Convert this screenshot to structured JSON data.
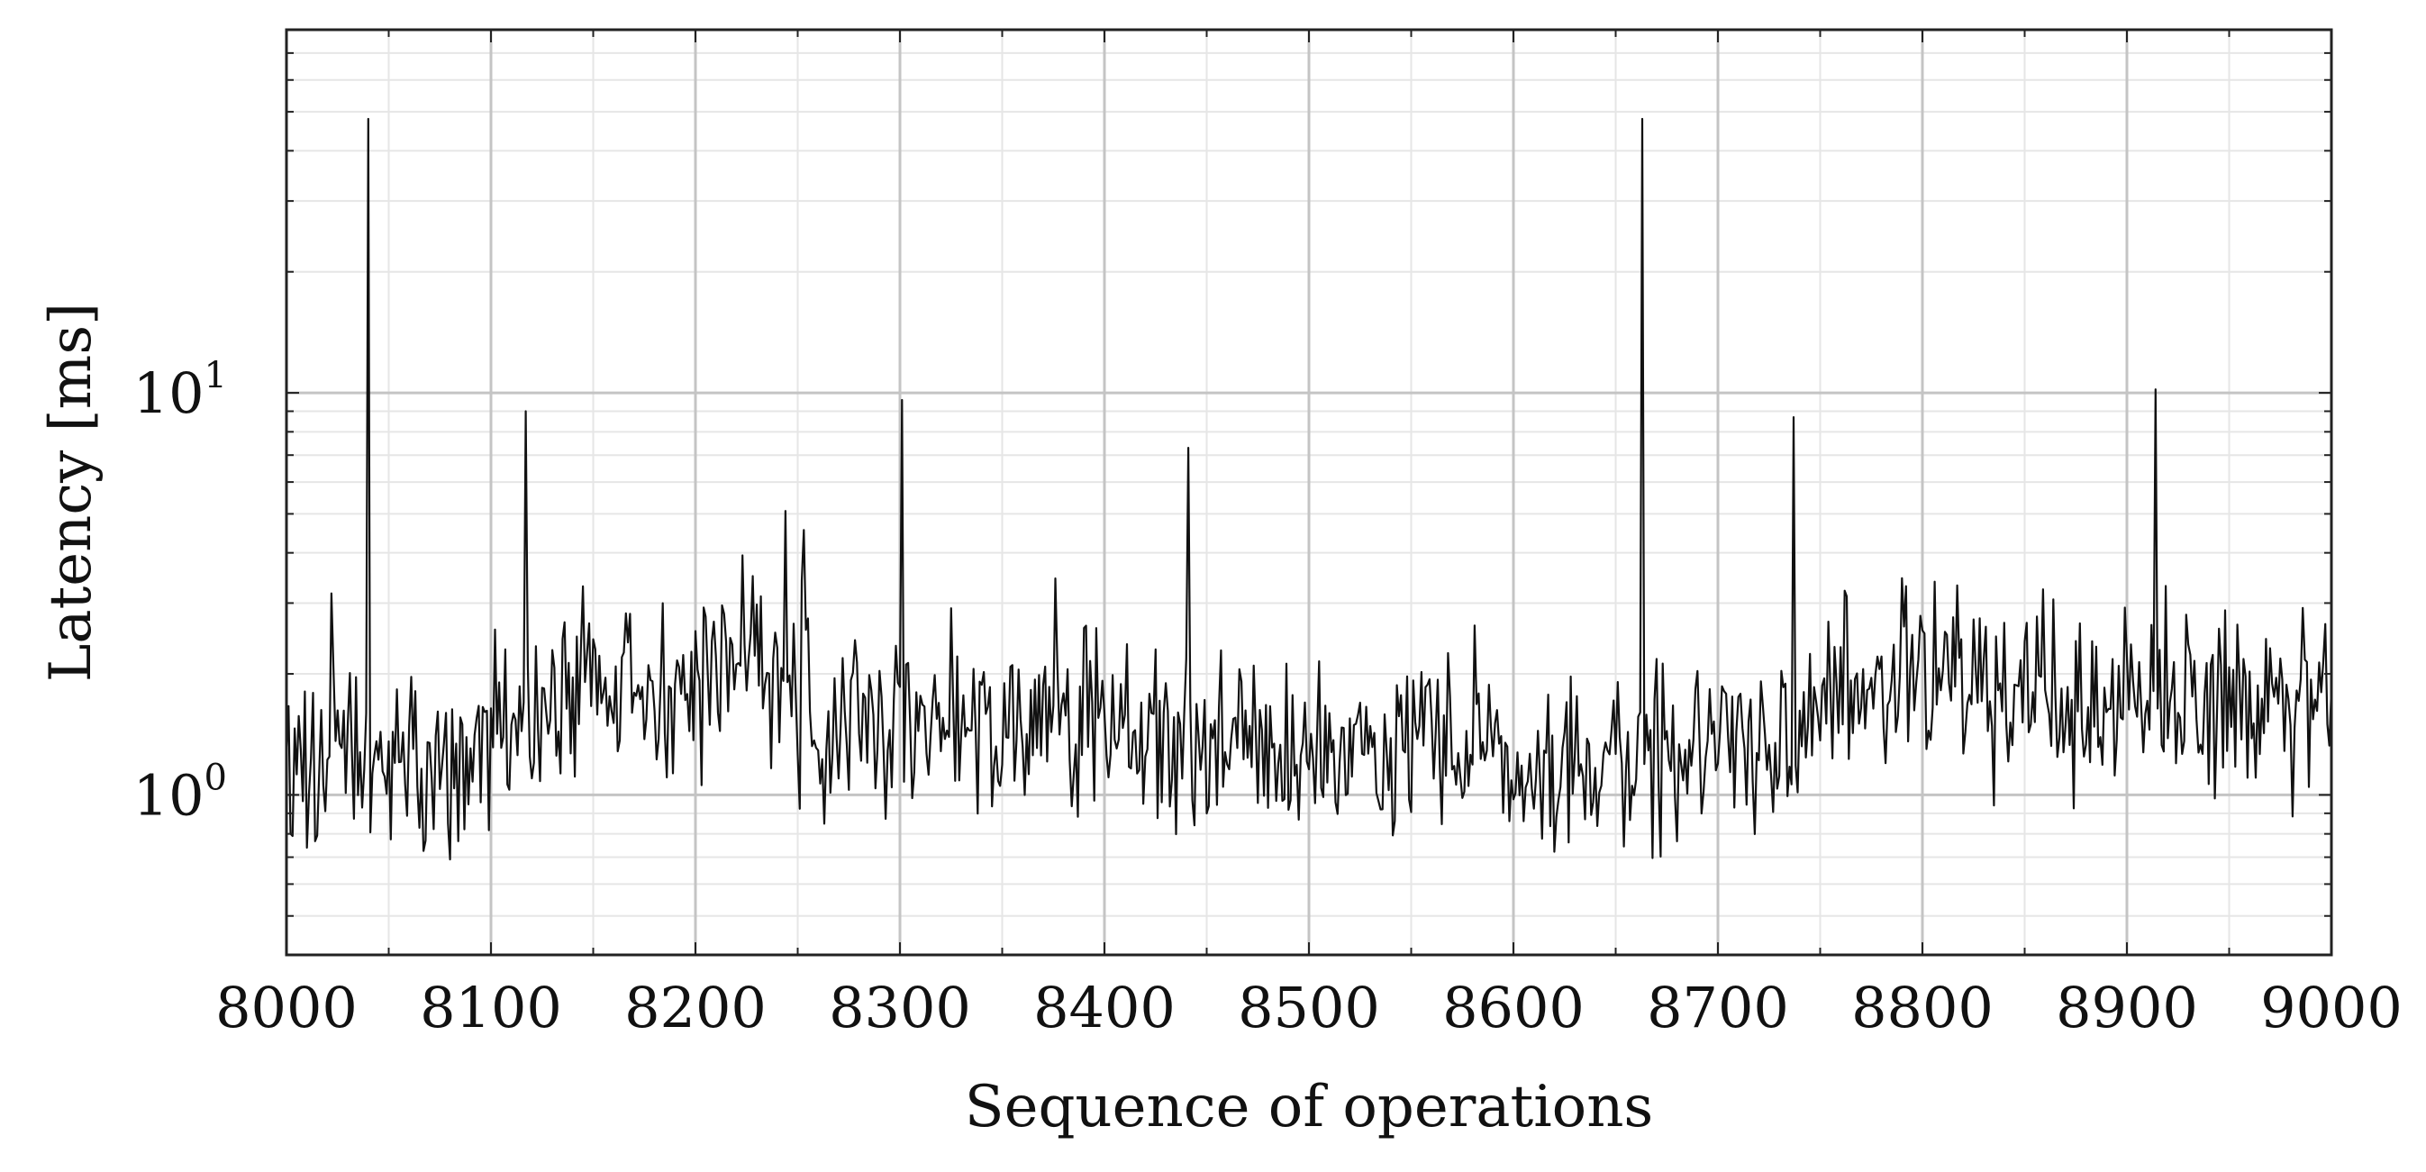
{
  "chart_data": {
    "type": "line",
    "title": "",
    "xlabel": "Sequence of operations",
    "ylabel": "Latency [ms]",
    "xlim": [
      8000,
      9000
    ],
    "ylim": [
      0.4,
      80
    ],
    "yscale": "log",
    "grid": true,
    "line_color": "#111111",
    "x_ticks": [
      "8000",
      "8100",
      "8200",
      "8300",
      "8400",
      "8500",
      "8600",
      "8700",
      "8800",
      "8900",
      "9000"
    ],
    "y_ticks": [
      {
        "value": 1,
        "base": "10",
        "exp": "0"
      },
      {
        "value": 10,
        "base": "10",
        "exp": "1"
      }
    ],
    "spikes": [
      {
        "x": 8040,
        "y": 48
      },
      {
        "x": 8117,
        "y": 9.0
      },
      {
        "x": 8301,
        "y": 9.6
      },
      {
        "x": 8441,
        "y": 7.3
      },
      {
        "x": 8663,
        "y": 48
      },
      {
        "x": 8737,
        "y": 8.7
      },
      {
        "x": 8914,
        "y": 10.2
      }
    ],
    "baseline": [
      {
        "x": 8000,
        "y": 1.3
      },
      {
        "x": 8050,
        "y": 1.15
      },
      {
        "x": 8100,
        "y": 1.35
      },
      {
        "x": 8150,
        "y": 1.8
      },
      {
        "x": 8200,
        "y": 2.0
      },
      {
        "x": 8230,
        "y": 2.2
      },
      {
        "x": 8260,
        "y": 1.5
      },
      {
        "x": 8300,
        "y": 1.5
      },
      {
        "x": 8350,
        "y": 1.55
      },
      {
        "x": 8400,
        "y": 1.45
      },
      {
        "x": 8450,
        "y": 1.35
      },
      {
        "x": 8500,
        "y": 1.25
      },
      {
        "x": 8550,
        "y": 1.25
      },
      {
        "x": 8600,
        "y": 1.2
      },
      {
        "x": 8650,
        "y": 1.15
      },
      {
        "x": 8700,
        "y": 1.3
      },
      {
        "x": 8749,
        "y": 1.25
      },
      {
        "x": 8752,
        "y": 1.7
      },
      {
        "x": 8800,
        "y": 2.0
      },
      {
        "x": 8850,
        "y": 1.85
      },
      {
        "x": 8900,
        "y": 1.7
      },
      {
        "x": 8950,
        "y": 1.6
      },
      {
        "x": 9000,
        "y": 1.55
      }
    ],
    "noise_spread_decades": 0.11
  }
}
